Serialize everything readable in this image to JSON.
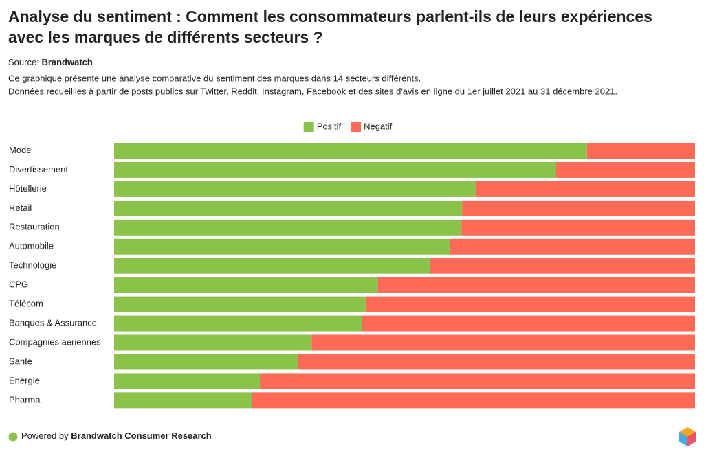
{
  "chart_data": {
    "type": "stacked_bar_100",
    "title": [
      "Analyse du sentiment : Comment les consommateurs parlent-ils de leurs expériences",
      "avec les marques de différents secteurs ?"
    ],
    "source_label": "Source:",
    "source": "Brandwatch",
    "description": [
      "Ce graphique présente une analyse comparative du sentiment des marques dans 14 secteurs différents.",
      "Données recueillies à partir de posts publics sur Twitter, Reddit, Instagram, Facebook et des sites d'avis en ligne du 1er juillet 2021 au 31 décembre 2021."
    ],
    "categories": [
      "Mode",
      "Divertissement",
      "Hôtellerie",
      "Retail",
      "Restauration",
      "Automobile",
      "Technologie",
      "CPG",
      "Télécom",
      "Banques & Assurance",
      "Compagnies aériennes",
      "Santé",
      "Énergie",
      "Pharma"
    ],
    "series": [
      {
        "name": "Positif",
        "color": "#8bc34a",
        "values": [
          81.4,
          76.1,
          62.2,
          59.9,
          59.8,
          57.8,
          54.4,
          45.4,
          43.3,
          42.7,
          34.0,
          31.7,
          25.1,
          23.7
        ]
      },
      {
        "name": "Negatif",
        "color": "#ff6b57",
        "values": [
          18.6,
          23.9,
          37.8,
          40.1,
          40.2,
          42.2,
          45.6,
          54.6,
          56.7,
          57.3,
          66.0,
          68.3,
          74.9,
          76.3
        ]
      }
    ],
    "footer": {
      "prefix": "Powered by",
      "brand": "Brandwatch Consumer Research"
    }
  }
}
